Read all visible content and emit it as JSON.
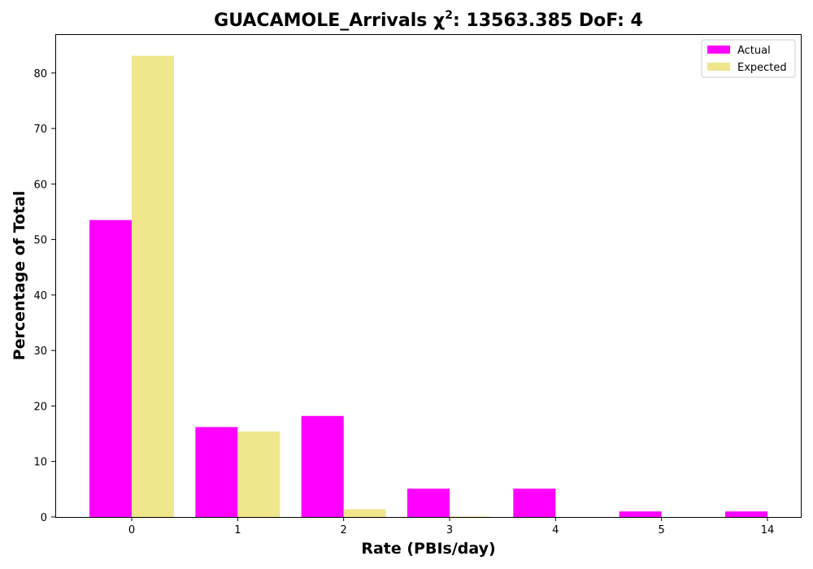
{
  "chart_data": {
    "type": "bar",
    "title": "GUACAMOLE_Arrivals χ",
    "title_superscript": "2",
    "title_suffix": ": 13563.385 DoF: 4",
    "xlabel": "Rate (PBIs/day)",
    "ylabel": "Percentage of Total",
    "categories": [
      "0",
      "1",
      "2",
      "3",
      "4",
      "5",
      "14"
    ],
    "ylim": [
      0,
      87
    ],
    "yticks": [
      0,
      10,
      20,
      30,
      40,
      50,
      60,
      70,
      80
    ],
    "grid": false,
    "legend_position": "top-right",
    "series": [
      {
        "name": "Actual",
        "color": "#ff00ff",
        "values": [
          53.5,
          16.2,
          18.2,
          5.1,
          5.1,
          1.0,
          1.0
        ]
      },
      {
        "name": "Expected",
        "color": "#f0e68c",
        "values": [
          83.1,
          15.4,
          1.4,
          0.1,
          0.0,
          0.0,
          0.0
        ]
      }
    ]
  }
}
